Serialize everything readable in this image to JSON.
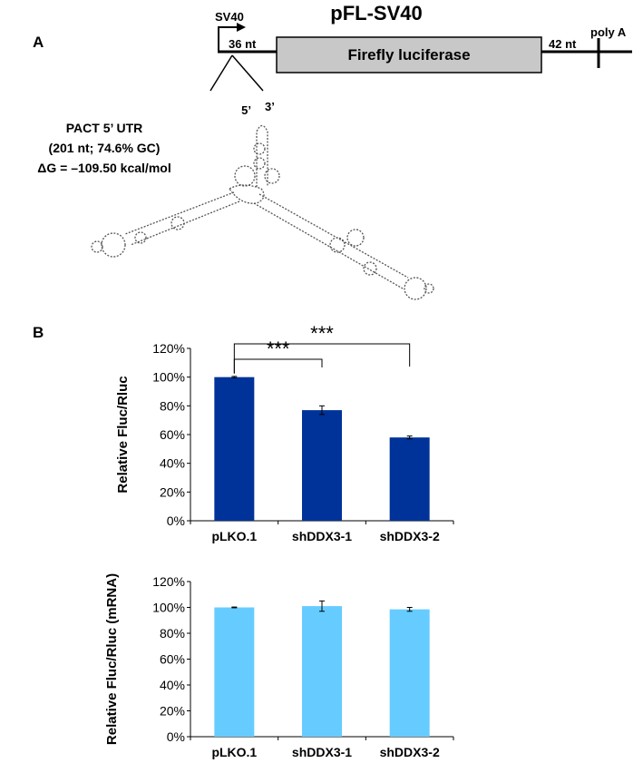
{
  "panel_a": {
    "label": "A",
    "construct_title": "pFL-SV40",
    "promoter_label": "SV40",
    "utr5_length": "36 nt",
    "gene_label": "Firefly luciferase",
    "utr3_length": "42 nt",
    "polya_label": "poly A",
    "structure_info": {
      "line1": "PACT 5’ UTR",
      "line2": "(201 nt; 74.6% GC)",
      "line3": "ΔG = –109.50 kcal/mol"
    },
    "end5_label": "5’",
    "end3_label": "3’"
  },
  "panel_b": {
    "label": "B",
    "significance_label": "***"
  },
  "chart_data": [
    {
      "type": "bar",
      "categories": [
        "pLKO.1",
        "shDDX3-1",
        "shDDX3-2"
      ],
      "values": [
        100,
        77,
        58
      ],
      "errors": [
        0.5,
        3,
        1
      ],
      "ylabel": "Relative Fluc/Rluc",
      "yticks": [
        "0%",
        "20%",
        "40%",
        "60%",
        "80%",
        "100%",
        "120%"
      ],
      "ylim": [
        0,
        120
      ],
      "color": "#003399",
      "significance": [
        {
          "from": 0,
          "to": 1,
          "label": "***"
        },
        {
          "from": 0,
          "to": 2,
          "label": "***"
        }
      ]
    },
    {
      "type": "bar",
      "categories": [
        "pLKO.1",
        "shDDX3-1",
        "shDDX3-2"
      ],
      "values": [
        100,
        101,
        98.5
      ],
      "errors": [
        0.3,
        4,
        1.5
      ],
      "ylabel": "Relative Fluc/Rluc (mRNA)",
      "yticks": [
        "0%",
        "20%",
        "40%",
        "60%",
        "80%",
        "100%",
        "120%"
      ],
      "ylim": [
        0,
        120
      ],
      "color": "#66ccff"
    }
  ]
}
